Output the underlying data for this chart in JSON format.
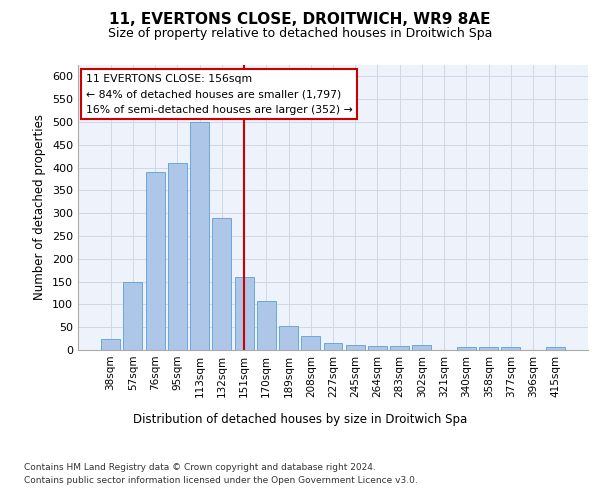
{
  "title": "11, EVERTONS CLOSE, DROITWICH, WR9 8AE",
  "subtitle": "Size of property relative to detached houses in Droitwich Spa",
  "xlabel": "Distribution of detached houses by size in Droitwich Spa",
  "ylabel": "Number of detached properties",
  "categories": [
    "38sqm",
    "57sqm",
    "76sqm",
    "95sqm",
    "113sqm",
    "132sqm",
    "151sqm",
    "170sqm",
    "189sqm",
    "208sqm",
    "227sqm",
    "245sqm",
    "264sqm",
    "283sqm",
    "302sqm",
    "321sqm",
    "340sqm",
    "358sqm",
    "377sqm",
    "396sqm",
    "415sqm"
  ],
  "values": [
    25,
    150,
    390,
    410,
    500,
    290,
    160,
    108,
    53,
    30,
    15,
    12,
    9,
    9,
    10,
    0,
    6,
    6,
    6,
    0,
    6
  ],
  "bar_color": "#aec6e8",
  "bar_edge_color": "#5a9fd4",
  "bar_width": 0.85,
  "property_label": "11 EVERTONS CLOSE: 156sqm",
  "pct_smaller": 84,
  "n_smaller": 1797,
  "pct_larger": 16,
  "n_larger": 352,
  "vline_position": 6.0,
  "ylim": [
    0,
    625
  ],
  "yticks": [
    0,
    50,
    100,
    150,
    200,
    250,
    300,
    350,
    400,
    450,
    500,
    550,
    600
  ],
  "grid_color": "#d0d8e8",
  "background_color": "#eef2fa",
  "vline_color": "#cc0000",
  "footer_line1": "Contains HM Land Registry data © Crown copyright and database right 2024.",
  "footer_line2": "Contains public sector information licensed under the Open Government Licence v3.0."
}
